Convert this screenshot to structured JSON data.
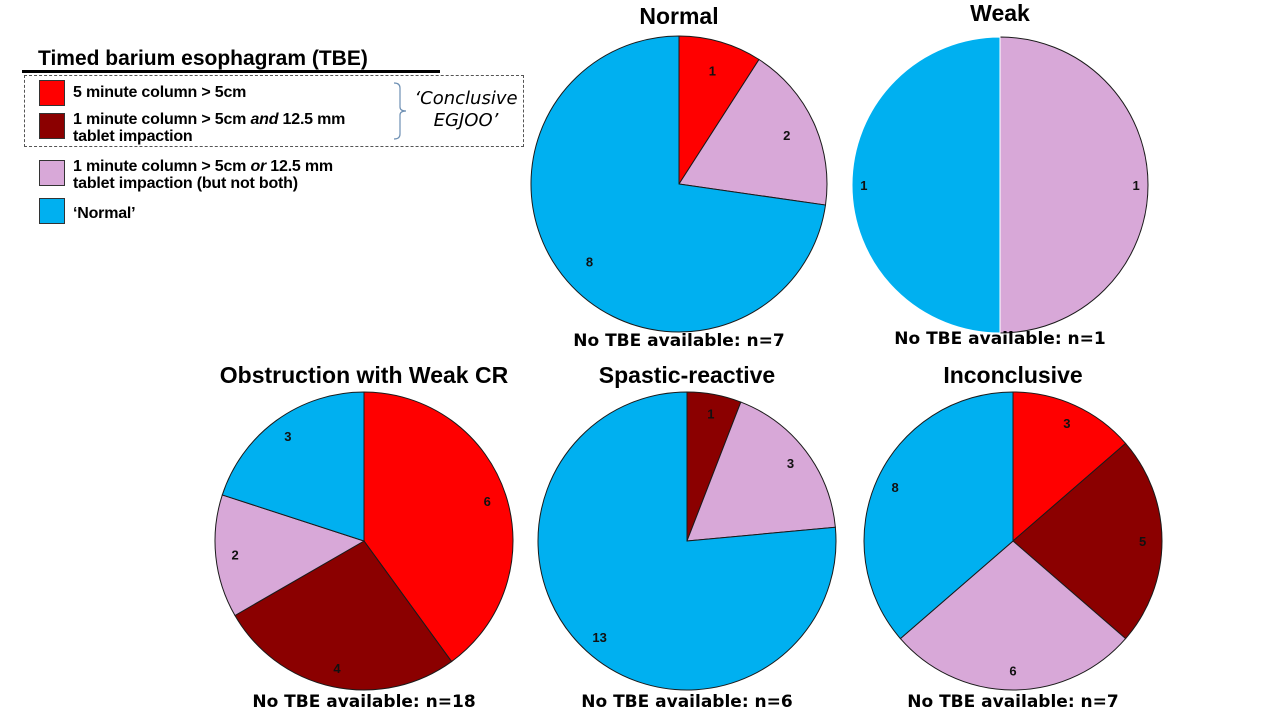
{
  "legend": {
    "title": "Timed barium esophagram (TBE)",
    "items": [
      {
        "key": "col5",
        "color": "#FF0000",
        "text_parts": [
          {
            "t": "5 minute column > 5cm",
            "i": false
          }
        ]
      },
      {
        "key": "both",
        "color": "#8B0000",
        "text_parts": [
          {
            "t": "1 minute column > 5cm ",
            "i": false
          },
          {
            "t": "and",
            "i": true
          },
          {
            "t": " 12.5 mm",
            "i": false
          },
          {
            "br": true
          },
          {
            "t": "tablet impaction",
            "i": false
          }
        ]
      },
      {
        "key": "either",
        "color": "#D8A8D8",
        "text_parts": [
          {
            "t": "1 minute column > 5cm ",
            "i": false
          },
          {
            "t": "or",
            "i": true
          },
          {
            "t": " 12.5 mm",
            "i": false
          },
          {
            "br": true
          },
          {
            "t": "tablet impaction (but not both)",
            "i": false
          }
        ]
      },
      {
        "key": "normal",
        "color": "#00B0F0",
        "text_parts": [
          {
            "t": "‘Normal’",
            "i": false
          }
        ]
      }
    ],
    "group_label_line1": "‘Conclusive",
    "group_label_line2": "EGJOO’"
  },
  "chart_data": [
    {
      "type": "pie",
      "title": "Normal",
      "footnote": "No TBE available: n=7",
      "slices": [
        {
          "category": "5 minute column > 5cm",
          "color": "#FF0000",
          "value": 1
        },
        {
          "category": "1 minute column > 5cm or 12.5 mm tablet impaction (but not both)",
          "color": "#D8A8D8",
          "value": 2
        },
        {
          "category": "Normal",
          "color": "#00B0F0",
          "value": 8
        }
      ]
    },
    {
      "type": "pie",
      "title": "Weak",
      "footnote": "No TBE available: n=1",
      "slices": [
        {
          "category": "1 minute column > 5cm or 12.5 mm tablet impaction (but not both)",
          "color": "#D8A8D8",
          "value": 1
        },
        {
          "category": "Normal",
          "color": "#00B0F0",
          "value": 1
        }
      ]
    },
    {
      "type": "pie",
      "title": "Obstruction with Weak CR",
      "footnote": "No TBE available: n=18",
      "slices": [
        {
          "category": "5 minute column > 5cm",
          "color": "#FF0000",
          "value": 6
        },
        {
          "category": "1 minute column > 5cm and 12.5 mm tablet impaction",
          "color": "#8B0000",
          "value": 4
        },
        {
          "category": "1 minute column > 5cm or 12.5 mm tablet impaction (but not both)",
          "color": "#D8A8D8",
          "value": 2
        },
        {
          "category": "Normal",
          "color": "#00B0F0",
          "value": 3
        }
      ]
    },
    {
      "type": "pie",
      "title": "Spastic-reactive",
      "footnote": "No TBE available: n=6",
      "slices": [
        {
          "category": "1 minute column > 5cm and 12.5 mm tablet impaction",
          "color": "#8B0000",
          "value": 1
        },
        {
          "category": "1 minute column > 5cm or 12.5 mm tablet impaction (but not both)",
          "color": "#D8A8D8",
          "value": 3
        },
        {
          "category": "Normal",
          "color": "#00B0F0",
          "value": 13
        }
      ]
    },
    {
      "type": "pie",
      "title": "Inconclusive",
      "footnote": "No TBE available: n=7",
      "slices": [
        {
          "category": "5 minute column > 5cm",
          "color": "#FF0000",
          "value": 3
        },
        {
          "category": "1 minute column > 5cm and 12.5 mm tablet impaction",
          "color": "#8B0000",
          "value": 5
        },
        {
          "category": "1 minute column > 5cm or 12.5 mm tablet impaction (but not both)",
          "color": "#D8A8D8",
          "value": 6
        },
        {
          "category": "Normal",
          "color": "#00B0F0",
          "value": 8
        }
      ]
    }
  ]
}
